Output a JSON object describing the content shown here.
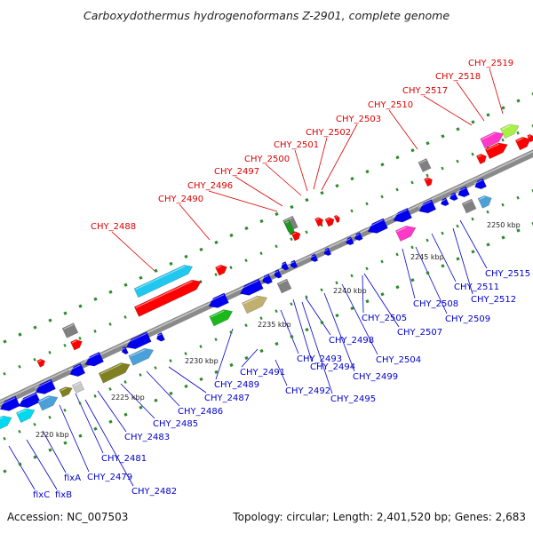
{
  "title": "Carboxydothermus hydrogenoformans Z-2901, complete genome",
  "footer": {
    "accession": "Accession: NC_007503",
    "topology": "Topology: circular; Length: 2,401,520 bp; Genes: 2,683"
  },
  "colors": {
    "upper_label": "#dd0000",
    "lower_label": "#0000cc",
    "backbone": "#8a8a8a",
    "dots": "#2a8a2a"
  },
  "scale_labels": [
    "2220 kbp",
    "2225 kbp",
    "2230 kbp",
    "2235 kbp",
    "2240 kbp",
    "2245 kbp",
    "2250 kbp"
  ],
  "upper_labels": [
    "CHY_2488",
    "CHY_2490",
    "CHY_2496",
    "CHY_2497",
    "CHY_2500",
    "CHY_2501",
    "CHY_2502",
    "CHY_2503",
    "CHY_2510",
    "CHY_2517",
    "CHY_2518",
    "CHY_2519"
  ],
  "lower_labels": [
    "fixC",
    "fixB",
    "fixA",
    "CHY_2479",
    "CHY_2481",
    "CHY_2482",
    "CHY_2483",
    "CHY_2485",
    "CHY_2486",
    "CHY_2487",
    "CHY_2489",
    "CHY_2491",
    "CHY_2492",
    "CHY_2493",
    "CHY_2494",
    "CHY_2495",
    "CHY_2498",
    "CHY_2499",
    "CHY_2504",
    "CHY_2505",
    "CHY_2507",
    "CHY_2508",
    "CHY_2509",
    "CHY_2511",
    "CHY_2512",
    "CHY_2515"
  ]
}
